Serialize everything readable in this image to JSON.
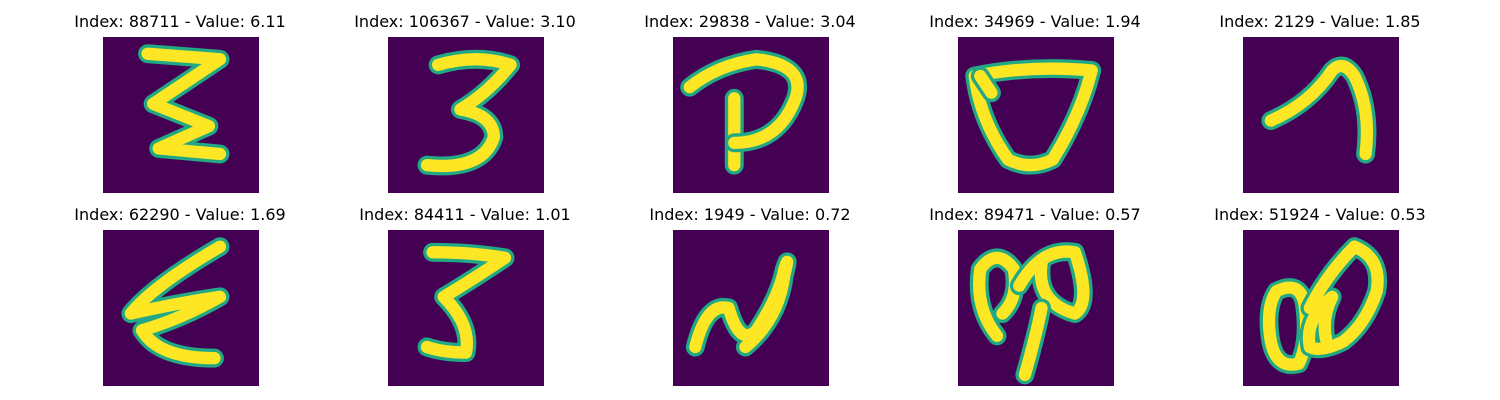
{
  "colors": {
    "background": "#440154",
    "stroke_core": "#fde725",
    "stroke_edge": "#22a884"
  },
  "chart_data": {
    "type": "image_grid",
    "panels": [
      {
        "index": 88711,
        "value": "6.11",
        "title": "Index: 88711 - Value: 6.11",
        "glyph": "zigzag-e"
      },
      {
        "index": 106367,
        "value": "3.10",
        "title": "Index: 106367 - Value: 3.10",
        "glyph": "three"
      },
      {
        "index": 29838,
        "value": "3.04",
        "title": "Index: 29838 - Value: 3.04",
        "glyph": "p-loop"
      },
      {
        "index": 34969,
        "value": "1.94",
        "title": "Index: 34969 - Value: 1.94",
        "glyph": "cup"
      },
      {
        "index": 2129,
        "value": "1.85",
        "title": "Index: 2129 - Value: 1.85",
        "glyph": "seven"
      },
      {
        "index": 62290,
        "value": "1.69",
        "title": "Index: 62290 - Value: 1.69",
        "glyph": "epsilon"
      },
      {
        "index": 84411,
        "value": "1.01",
        "title": "Index: 84411 - Value: 1.01",
        "glyph": "five-s"
      },
      {
        "index": 1949,
        "value": "0.72",
        "title": "Index: 1949 - Value: 0.72",
        "glyph": "n-swash"
      },
      {
        "index": 89471,
        "value": "0.57",
        "title": "Index: 89471 - Value: 0.57",
        "glyph": "loops"
      },
      {
        "index": 51924,
        "value": "0.53",
        "title": "Index: 51924 - Value: 0.53",
        "glyph": "double-loop"
      }
    ]
  }
}
